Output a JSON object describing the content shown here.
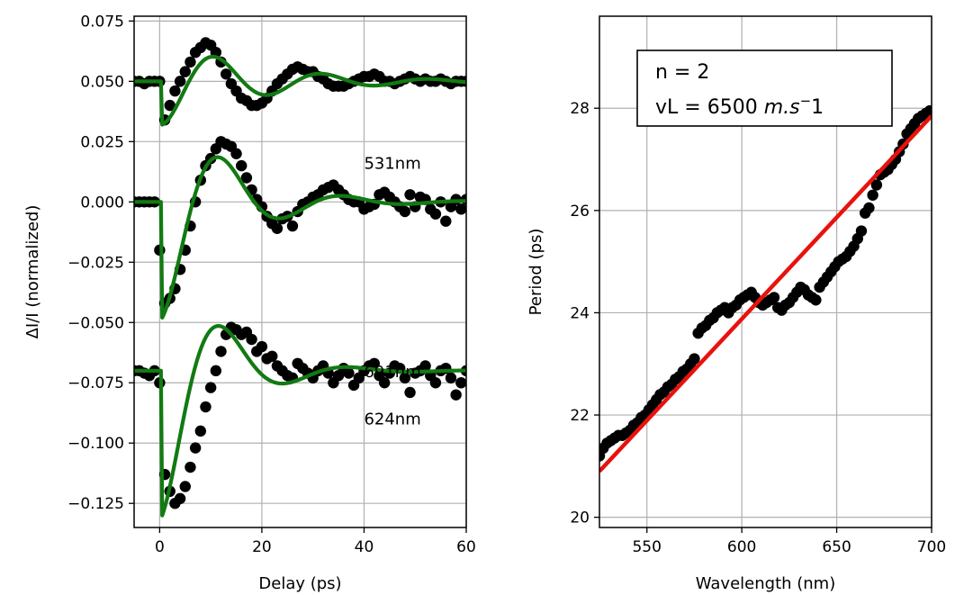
{
  "chart_data": [
    {
      "type": "line",
      "xlabel": "Delay (ps)",
      "ylabel": "ΔI/I (normalized)",
      "xlim": [
        -5,
        60
      ],
      "ylim": [
        -0.135,
        0.077
      ],
      "xticks": [
        0,
        20,
        40,
        60
      ],
      "yticks": [
        0.075,
        0.05,
        0.025,
        0.0,
        -0.025,
        -0.05,
        -0.075,
        -0.1,
        -0.125
      ],
      "ytick_labels": [
        "0.075",
        "0.050",
        "0.025",
        "0.000",
        "−0.025",
        "−0.050",
        "−0.075",
        "−0.100",
        "−0.125"
      ],
      "grid": true,
      "fit_color": "#127a12",
      "marker_color": "#000000",
      "annotations": [
        {
          "text": "531nm",
          "x": 40,
          "y": 0.016
        },
        {
          "text": "624nm",
          "x": 40,
          "y": -0.09
        },
        {
          "text": "691nm",
          "x": 40,
          "y": -0.0705
        }
      ],
      "series": [
        {
          "baseline": 0.05,
          "amp": -0.018,
          "period": 21.0,
          "tau": 18.0,
          "phase": 0.0,
          "x": [
            -5,
            -4,
            -3,
            -2,
            -1,
            0,
            1,
            2,
            3,
            4,
            5,
            6,
            7,
            8,
            9,
            10,
            11,
            12,
            13,
            14,
            15,
            16,
            17,
            18,
            19,
            20,
            21,
            22,
            23,
            24,
            25,
            26,
            27,
            28,
            29,
            30,
            31,
            32,
            33,
            34,
            35,
            36,
            37,
            38,
            39,
            40,
            41,
            42,
            43,
            44,
            45,
            46,
            47,
            48,
            49,
            50,
            51,
            52,
            53,
            54,
            55,
            56,
            57,
            58,
            59,
            60
          ],
          "y": [
            0.05,
            0.05,
            0.049,
            0.05,
            0.05,
            0.05,
            0.034,
            0.04,
            0.046,
            0.05,
            0.054,
            0.058,
            0.062,
            0.064,
            0.066,
            0.065,
            0.062,
            0.058,
            0.053,
            0.049,
            0.046,
            0.043,
            0.042,
            0.04,
            0.04,
            0.041,
            0.043,
            0.046,
            0.049,
            0.051,
            0.053,
            0.055,
            0.056,
            0.055,
            0.054,
            0.054,
            0.052,
            0.051,
            0.049,
            0.048,
            0.048,
            0.048,
            0.049,
            0.05,
            0.051,
            0.052,
            0.052,
            0.053,
            0.052,
            0.05,
            0.05,
            0.049,
            0.05,
            0.051,
            0.052,
            0.051,
            0.05,
            0.051,
            0.05,
            0.05,
            0.051,
            0.05,
            0.049,
            0.05,
            0.05,
            0.05
          ]
        },
        {
          "baseline": 0.0,
          "amp": -0.048,
          "period": 24.0,
          "tau": 12.0,
          "phase": 0.0,
          "x": [
            -5,
            -4,
            -3,
            -2,
            -1,
            0,
            1,
            2,
            3,
            4,
            5,
            6,
            7,
            8,
            9,
            10,
            11,
            12,
            13,
            14,
            15,
            16,
            17,
            18,
            19,
            20,
            21,
            22,
            23,
            24,
            25,
            26,
            27,
            28,
            29,
            30,
            31,
            32,
            33,
            34,
            35,
            36,
            37,
            38,
            39,
            40,
            41,
            42,
            43,
            44,
            45,
            46,
            47,
            48,
            49,
            50,
            51,
            52,
            53,
            54,
            55,
            56,
            57,
            58,
            59,
            60
          ],
          "y": [
            0.0,
            0.0,
            0.0,
            0.0,
            0.0,
            -0.02,
            -0.042,
            -0.04,
            -0.036,
            -0.028,
            -0.02,
            -0.01,
            0.0,
            0.009,
            0.015,
            0.018,
            0.022,
            0.025,
            0.024,
            0.023,
            0.02,
            0.015,
            0.01,
            0.005,
            0.001,
            -0.002,
            -0.006,
            -0.009,
            -0.011,
            -0.007,
            -0.006,
            -0.01,
            -0.004,
            -0.001,
            0.0,
            0.002,
            0.003,
            0.005,
            0.006,
            0.007,
            0.005,
            0.003,
            0.001,
            0.0,
            0.0,
            -0.003,
            -0.002,
            -0.001,
            0.003,
            0.004,
            0.002,
            0.0,
            -0.002,
            -0.004,
            0.003,
            -0.002,
            0.002,
            0.001,
            -0.003,
            -0.005,
            0.0,
            -0.008,
            -0.002,
            0.001,
            -0.003,
            0.001
          ]
        },
        {
          "baseline": -0.07,
          "amp": -0.06,
          "period": 25.0,
          "tau": 10.0,
          "phase": 0.0,
          "x": [
            -5,
            -4,
            -3,
            -2,
            -1,
            0,
            1,
            2,
            3,
            4,
            5,
            6,
            7,
            8,
            9,
            10,
            11,
            12,
            13,
            14,
            15,
            16,
            17,
            18,
            19,
            20,
            21,
            22,
            23,
            24,
            25,
            26,
            27,
            28,
            29,
            30,
            31,
            32,
            33,
            34,
            35,
            36,
            37,
            38,
            39,
            40,
            41,
            42,
            43,
            44,
            45,
            46,
            47,
            48,
            49,
            50,
            51,
            52,
            53,
            54,
            55,
            56,
            57,
            58,
            59,
            60
          ],
          "y": [
            -0.07,
            -0.07,
            -0.071,
            -0.072,
            -0.07,
            -0.075,
            -0.113,
            -0.12,
            -0.125,
            -0.123,
            -0.118,
            -0.11,
            -0.102,
            -0.095,
            -0.085,
            -0.077,
            -0.07,
            -0.062,
            -0.055,
            -0.052,
            -0.053,
            -0.055,
            -0.054,
            -0.057,
            -0.062,
            -0.06,
            -0.065,
            -0.064,
            -0.068,
            -0.07,
            -0.072,
            -0.073,
            -0.067,
            -0.069,
            -0.071,
            -0.073,
            -0.07,
            -0.068,
            -0.071,
            -0.075,
            -0.072,
            -0.069,
            -0.071,
            -0.076,
            -0.073,
            -0.07,
            -0.068,
            -0.067,
            -0.072,
            -0.075,
            -0.071,
            -0.068,
            -0.069,
            -0.073,
            -0.079,
            -0.071,
            -0.07,
            -0.068,
            -0.072,
            -0.075,
            -0.07,
            -0.069,
            -0.073,
            -0.08,
            -0.075,
            -0.07
          ]
        }
      ]
    },
    {
      "type": "scatter",
      "xlabel": "Wavelength (nm)",
      "ylabel": "Period (ps)",
      "xlim": [
        525,
        700
      ],
      "ylim": [
        19.8,
        29.8
      ],
      "xticks": [
        550,
        600,
        650,
        700
      ],
      "yticks": [
        20,
        22,
        24,
        26,
        28
      ],
      "grid": true,
      "fit_line": {
        "x": [
          525,
          700
        ],
        "y": [
          20.9,
          27.85
        ],
        "color": "#e8120c"
      },
      "marker_color": "#000000",
      "legend": {
        "line1": "n = 2",
        "line2_prefix": "vL = 6500 ",
        "line2_units": "m.s",
        "line2_sup": "−",
        "line2_tail": "1",
        "loc": "upper left"
      },
      "points": {
        "x": [
          525,
          527,
          529,
          531,
          533,
          535,
          537,
          539,
          541,
          543,
          545,
          547,
          549,
          551,
          553,
          555,
          557,
          559,
          561,
          563,
          565,
          567,
          569,
          571,
          573,
          575,
          577,
          579,
          581,
          583,
          585,
          587,
          589,
          591,
          593,
          595,
          597,
          599,
          601,
          603,
          605,
          607,
          609,
          611,
          613,
          615,
          617,
          619,
          621,
          623,
          625,
          627,
          629,
          631,
          633,
          635,
          637,
          639,
          641,
          643,
          645,
          647,
          649,
          651,
          653,
          655,
          657,
          659,
          661,
          663,
          665,
          667,
          669,
          671,
          673,
          675,
          677,
          679,
          681,
          683,
          685,
          687,
          689,
          691,
          693,
          695,
          697,
          699
        ],
        "y": [
          21.2,
          21.35,
          21.45,
          21.5,
          21.55,
          21.6,
          21.6,
          21.65,
          21.7,
          21.8,
          21.85,
          21.95,
          22.0,
          22.1,
          22.2,
          22.3,
          22.4,
          22.45,
          22.55,
          22.6,
          22.7,
          22.75,
          22.85,
          22.9,
          23.0,
          23.1,
          23.6,
          23.7,
          23.75,
          23.85,
          23.9,
          24.0,
          24.05,
          24.1,
          24.0,
          24.1,
          24.15,
          24.25,
          24.3,
          24.35,
          24.4,
          24.3,
          24.2,
          24.15,
          24.2,
          24.25,
          24.3,
          24.1,
          24.05,
          24.15,
          24.2,
          24.3,
          24.4,
          24.5,
          24.45,
          24.35,
          24.3,
          24.25,
          24.5,
          24.6,
          24.7,
          24.8,
          24.9,
          25.0,
          25.05,
          25.1,
          25.2,
          25.3,
          25.45,
          25.6,
          25.95,
          26.05,
          26.3,
          26.5,
          26.7,
          26.75,
          26.8,
          26.9,
          27.0,
          27.15,
          27.3,
          27.5,
          27.6,
          27.7,
          27.8,
          27.85,
          27.9,
          27.95
        ]
      }
    }
  ]
}
